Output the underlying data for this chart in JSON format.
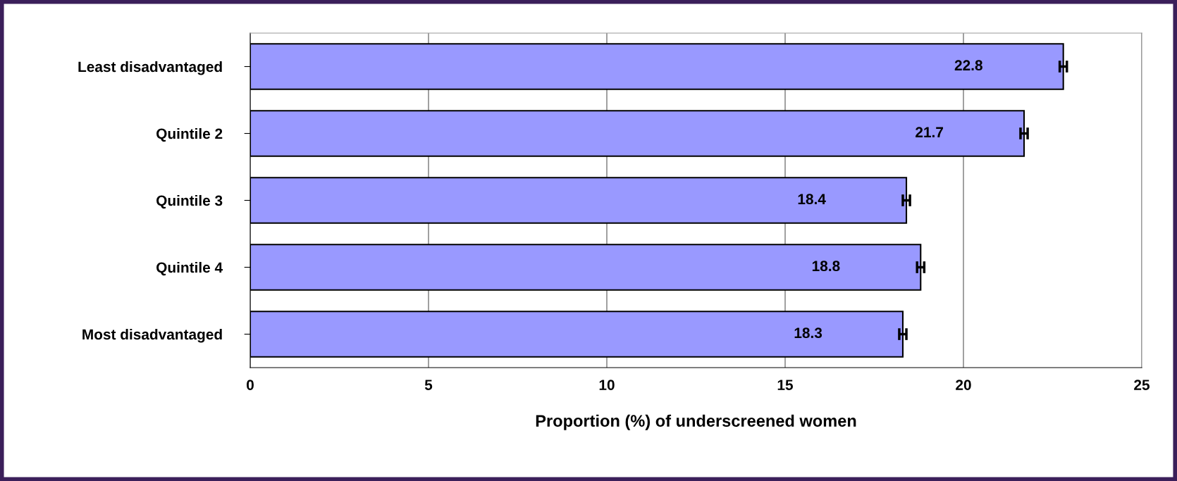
{
  "chart_data": {
    "type": "bar",
    "orientation": "horizontal",
    "xlabel": "Proportion (%) of underscreened women",
    "categories": [
      "Least disadvantaged",
      "Quintile 2",
      "Quintile 3",
      "Quintile 4",
      "Most disadvantaged"
    ],
    "values": [
      22.8,
      21.7,
      18.4,
      18.8,
      18.3
    ],
    "errors": [
      0.1,
      0.1,
      0.1,
      0.1,
      0.1
    ],
    "color": "#9999ff",
    "data_labels": true,
    "xlim": [
      0,
      25
    ],
    "xticks": [
      0,
      5,
      10,
      15,
      20,
      25
    ],
    "grid": "x"
  }
}
